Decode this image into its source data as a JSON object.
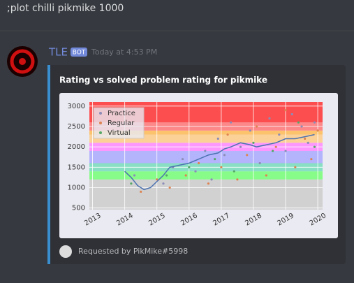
{
  "message": {
    "command": ";plot chilli pikmike 1000"
  },
  "bot": {
    "name": "TLE",
    "badge": "BOT",
    "timestamp": "Today at 4:53 PM"
  },
  "embed": {
    "title": "Rating vs solved problem rating for pikmike",
    "footer": "Requested by PikMike#5998"
  },
  "chart_data": {
    "type": "scatter",
    "xlim": [
      2012.9,
      2020.15
    ],
    "ylim": [
      460,
      3100
    ],
    "xticks": [
      2013,
      2014,
      2015,
      2016,
      2017,
      2018,
      2019,
      2020
    ],
    "yticks": [
      500,
      1000,
      1500,
      2000,
      2500,
      3000
    ],
    "grid": true,
    "legend": "upper-left",
    "bands": [
      {
        "from": 0,
        "to": 1200,
        "color": "#cccccc"
      },
      {
        "from": 1200,
        "to": 1400,
        "color": "#77ff77"
      },
      {
        "from": 1400,
        "to": 1600,
        "color": "#77ddbb"
      },
      {
        "from": 1600,
        "to": 1900,
        "color": "#aaaaff"
      },
      {
        "from": 1900,
        "to": 2100,
        "color": "#ff88ff"
      },
      {
        "from": 2100,
        "to": 2300,
        "color": "#ffcc88"
      },
      {
        "from": 2300,
        "to": 2400,
        "color": "#ffbb55"
      },
      {
        "from": 2400,
        "to": 2600,
        "color": "#ff7777"
      },
      {
        "from": 2600,
        "to": 9999,
        "color": "#ff3333"
      }
    ],
    "series": [
      {
        "name": "Practice",
        "color": "#8c8cb8",
        "x": [
          2014.3,
          2015.2,
          2015.5,
          2015.8,
          2016.2,
          2016.5,
          2016.9,
          2017.1,
          2017.3,
          2017.6,
          2017.9,
          2018.2,
          2018.5,
          2018.8,
          2019.0,
          2019.2,
          2019.5,
          2019.7,
          2019.9,
          2016.7
        ],
        "y": [
          1300,
          1100,
          1500,
          1700,
          1400,
          1900,
          2200,
          1800,
          2600,
          2000,
          2400,
          1600,
          2700,
          2300,
          1900,
          2800,
          2500,
          2100,
          2600,
          1200
        ]
      },
      {
        "name": "Regular",
        "color": "#dd8452",
        "x": [
          2014.5,
          2015.0,
          2015.4,
          2015.9,
          2016.3,
          2016.6,
          2017.0,
          2017.2,
          2017.5,
          2017.8,
          2018.1,
          2018.4,
          2018.7,
          2019.0,
          2019.3,
          2019.6,
          2019.8,
          2020.0
        ],
        "y": [
          900,
          1200,
          1000,
          1300,
          1600,
          1100,
          1500,
          2300,
          1200,
          1800,
          2500,
          1300,
          2000,
          2900,
          1500,
          2200,
          1700,
          2400
        ]
      },
      {
        "name": "Virtual",
        "color": "#55a868",
        "x": [
          2014.2,
          2015.3,
          2016.0,
          2016.8,
          2017.4,
          2018.0,
          2018.6,
          2019.4,
          2019.9
        ],
        "y": [
          1100,
          1300,
          1500,
          1700,
          1400,
          2100,
          1900,
          2600,
          2000
        ]
      }
    ],
    "rating": {
      "color": "#4c72b0",
      "x": [
        2014.0,
        2014.2,
        2014.4,
        2014.6,
        2014.8,
        2015.0,
        2015.2,
        2015.4,
        2015.7,
        2016.0,
        2016.3,
        2016.6,
        2016.9,
        2017.1,
        2017.3,
        2017.6,
        2017.9,
        2018.1,
        2018.4,
        2018.7,
        2019.0,
        2019.3,
        2019.6,
        2019.9
      ],
      "y": [
        1400,
        1250,
        1050,
        950,
        1000,
        1150,
        1300,
        1500,
        1550,
        1600,
        1700,
        1800,
        1850,
        1950,
        2000,
        2100,
        2050,
        2000,
        2050,
        2100,
        2200,
        2200,
        2250,
        2300
      ]
    }
  }
}
